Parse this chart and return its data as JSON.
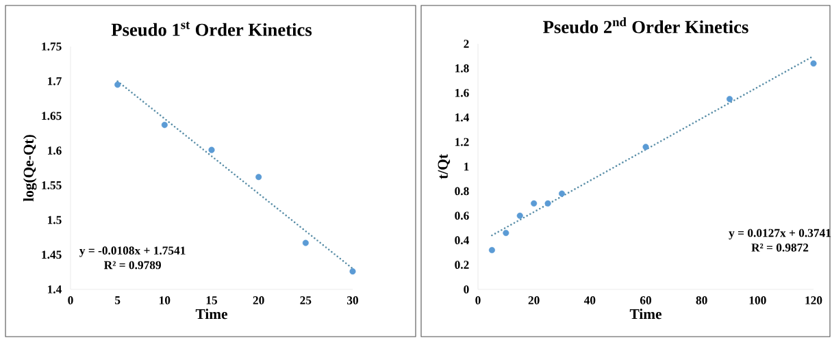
{
  "chart_data": [
    {
      "type": "scatter",
      "title": "Pseudo 1$^{st}$ Order Kinetics",
      "xlabel": "Time",
      "ylabel": "log(Qe-Qt)",
      "xlim": [
        0,
        30
      ],
      "xticks": [
        0,
        5,
        10,
        15,
        20,
        25,
        30
      ],
      "ylim": [
        1.4,
        1.75
      ],
      "yticks": [
        1.4,
        1.45,
        1.5,
        1.55,
        1.6,
        1.65,
        1.7,
        1.75
      ],
      "series": [
        {
          "marker": "circle",
          "color": "#5b9bd5",
          "x": [
            5,
            10,
            15,
            20,
            25,
            30
          ],
          "values": [
            1.695,
            1.637,
            1.601,
            1.562,
            1.467,
            1.426
          ]
        },
        {
          "type": "line",
          "marker": "none",
          "line_style": "dotted",
          "color": "#5b8fa8",
          "x": [
            5,
            30
          ],
          "values": [
            1.7,
            1.43
          ]
        }
      ],
      "annotations": [
        "y = -0.0108x + 1.7541",
        "R² = 0.9789"
      ]
    },
    {
      "type": "scatter",
      "title": "Pseudo 2$^{nd}$ Order Kinetics",
      "xlabel": "Time",
      "ylabel": "t/Qt",
      "xlim": [
        0,
        120
      ],
      "xticks": [
        0,
        20,
        40,
        60,
        80,
        100,
        120
      ],
      "ylim": [
        0,
        2
      ],
      "yticks": [
        0,
        0.2,
        0.4,
        0.6,
        0.8,
        1,
        1.2,
        1.4,
        1.6,
        1.8,
        2
      ],
      "series": [
        {
          "marker": "circle",
          "color": "#5b9bd5",
          "x": [
            5,
            10,
            15,
            20,
            25,
            30,
            60,
            90,
            120
          ],
          "values": [
            0.32,
            0.46,
            0.6,
            0.7,
            0.7,
            0.78,
            1.16,
            1.55,
            1.84
          ]
        },
        {
          "type": "line",
          "marker": "none",
          "line_style": "dotted",
          "color": "#5b8fa8",
          "x": [
            5,
            120
          ],
          "values": [
            0.44,
            1.9
          ]
        }
      ],
      "annotations": [
        "y = 0.0127x + 0.3741",
        "R² = 0.9872"
      ]
    }
  ]
}
